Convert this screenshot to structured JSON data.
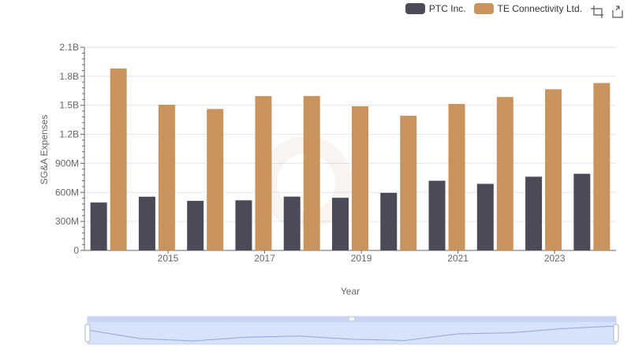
{
  "chart_data": {
    "type": "bar",
    "title": "",
    "xlabel": "Year",
    "ylabel": "SG&A Expenses",
    "categories": [
      "2014",
      "2015",
      "2016",
      "2017",
      "2018",
      "2019",
      "2020",
      "2021",
      "2022",
      "2023",
      "2024"
    ],
    "x_tick_labels": [
      "2015",
      "2017",
      "2019",
      "2021",
      "2023"
    ],
    "y_tick_labels": [
      "0",
      "300M",
      "600M",
      "900M",
      "1.2B",
      "1.5B",
      "1.8B",
      "2.1B"
    ],
    "ylim": [
      0,
      2100000000
    ],
    "grid": true,
    "legend_position": "top-right",
    "series": [
      {
        "name": "PTC Inc.",
        "color": "#4a4a58",
        "values": [
          495000000,
          555000000,
          512000000,
          518000000,
          556000000,
          544000000,
          595000000,
          720000000,
          688000000,
          762000000,
          792000000
        ]
      },
      {
        "name": "TE Connectivity Ltd.",
        "color": "#c9935d",
        "values": [
          1880000000,
          1506000000,
          1462000000,
          1595000000,
          1596000000,
          1490000000,
          1392000000,
          1514000000,
          1586000000,
          1666000000,
          1730000000
        ]
      }
    ]
  },
  "legend": {
    "items": [
      {
        "label": "PTC Inc.",
        "color": "#4a4a58"
      },
      {
        "label": "TE Connectivity Ltd.",
        "color": "#c9935d"
      }
    ]
  },
  "toolbox": {
    "icons": [
      "zoom-icon",
      "restore-icon"
    ]
  }
}
